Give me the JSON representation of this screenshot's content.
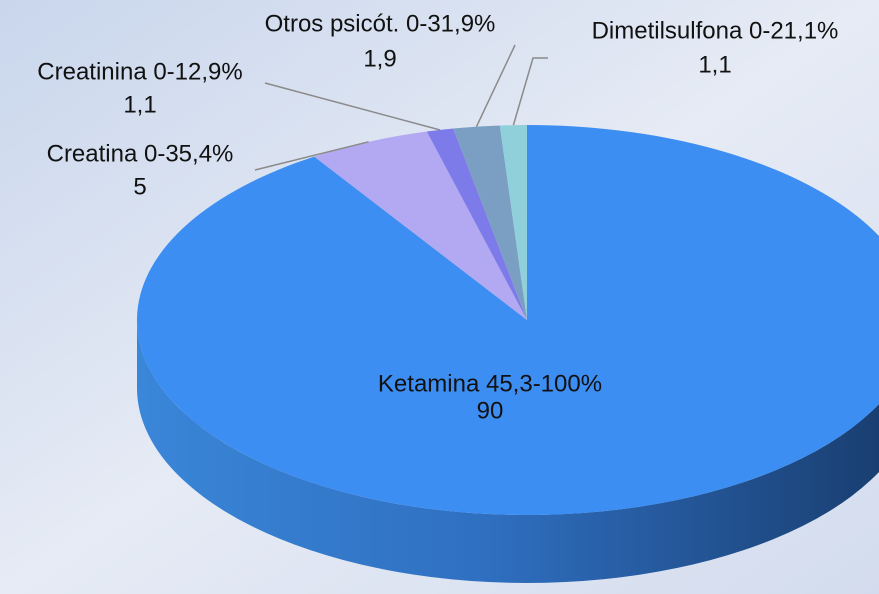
{
  "chart_data": {
    "type": "pie",
    "categories": [
      "Ketamina 45,3-100%",
      "Creatina 0-35,4%",
      "Creatinina 0-12,9%",
      "Otros psicót. 0-31,9%",
      "Dimetilsulfona 0-21,1%"
    ],
    "values": [
      90,
      5,
      1.1,
      1.9,
      1.1
    ],
    "value_labels": [
      "90",
      "5",
      "1,1",
      "1,9",
      "1,1"
    ],
    "colors": [
      "#3d8ef2",
      "#b3a9f2",
      "#7d7be9",
      "#7b9fc2",
      "#8fd0da"
    ]
  }
}
